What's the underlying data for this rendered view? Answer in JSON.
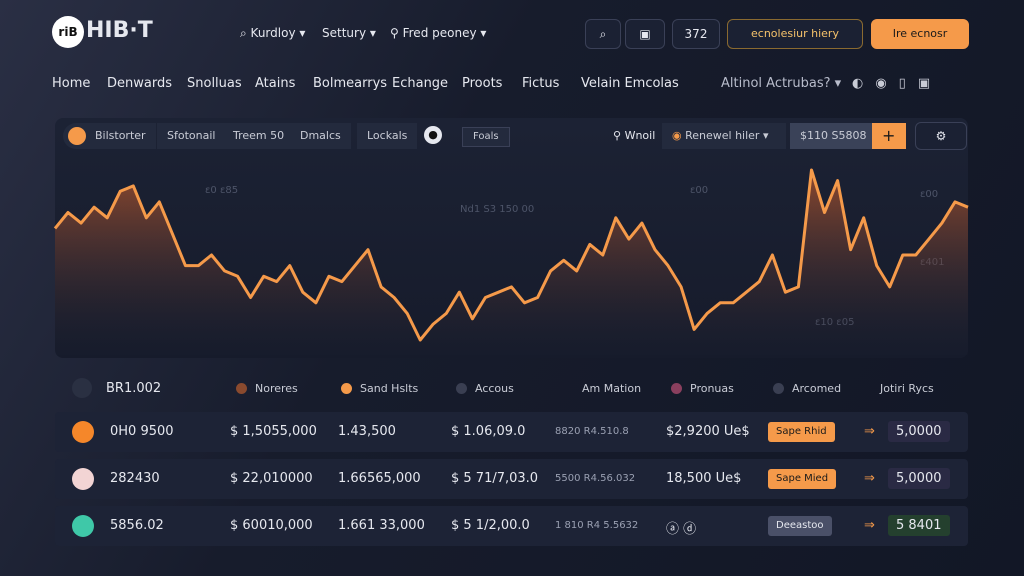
{
  "header": {
    "logo_mark": "riB",
    "logo": "HIB·T",
    "menus": [
      "Kurdloy",
      "Settury",
      "Fred peoney"
    ],
    "badge": "372",
    "search": "ecnolesiur hiery",
    "cta": "Ire ecnosr"
  },
  "nav": {
    "items": [
      "Home",
      "Denwards",
      "Snolluas",
      "Atains",
      "Bolmearrys",
      "Echange",
      "Proots",
      "Fictus",
      "Velain Emcolas"
    ],
    "select": "Altinol Actrubas?"
  },
  "toolbar": {
    "tabs": [
      "Bilstorter",
      "Sfotonail",
      "Treem 50",
      "Dmalcs",
      "Lockals"
    ],
    "filter": "Foals",
    "watch": "Wnoil",
    "pair": "Renewel hiler",
    "price": "$110 S5808",
    "plus": "+"
  },
  "chart": {
    "type": "line",
    "color": "#f59a4a",
    "labels": [
      "ε0 ε85",
      "Nd1 S3 150 00",
      "ε00",
      "ε00",
      "ε401",
      "ε10 ε05"
    ],
    "values": [
      115,
      130,
      120,
      135,
      125,
      150,
      155,
      125,
      140,
      110,
      80,
      80,
      90,
      75,
      70,
      50,
      70,
      65,
      80,
      55,
      45,
      70,
      65,
      80,
      95,
      60,
      50,
      35,
      10,
      25,
      35,
      55,
      30,
      50,
      55,
      60,
      45,
      50,
      75,
      85,
      75,
      100,
      90,
      125,
      105,
      120,
      95,
      80,
      60,
      20,
      35,
      45,
      45,
      55,
      65,
      90,
      55,
      60,
      170,
      130,
      160,
      95,
      125,
      80,
      60,
      90,
      90,
      105,
      120,
      140,
      135
    ]
  },
  "legend": {
    "lead": "BR1.002",
    "items": [
      {
        "name": "Noreres",
        "color": "#8a4a2e"
      },
      {
        "name": "Sand Hslts",
        "color": "#f59a4a"
      },
      {
        "name": "Accous",
        "color": "#3a3f52"
      },
      {
        "name": "Am Mation",
        "color": null
      },
      {
        "name": "Pronuas",
        "color": "#8a3f5e"
      },
      {
        "name": "Arcomed",
        "color": "#3a3f52"
      }
    ],
    "tail": "Jotiri Rycs"
  },
  "table": {
    "rows": [
      [
        "0H0 9500",
        "$ 1,5055,000",
        "1.43,500",
        "$ 1.06,09.0",
        "8820 R4.510.8",
        "$2,9200 Ue$",
        "Sape Rhid",
        "5,0000"
      ],
      [
        "282430",
        "$ 22,010000",
        "1.66565,000",
        "$ 5 71/7,03.0",
        "5500 R4.56.032",
        "18,500 Ue$",
        "Sape Mied",
        "5,0000"
      ],
      [
        "5856.02",
        "$ 60010,000",
        "1.661 33,000",
        "$ 5 1/2,00.0",
        "1 810 R4 5.5632",
        "ⓐ ⓓ",
        "Deeastoo",
        "5 8401"
      ]
    ]
  }
}
